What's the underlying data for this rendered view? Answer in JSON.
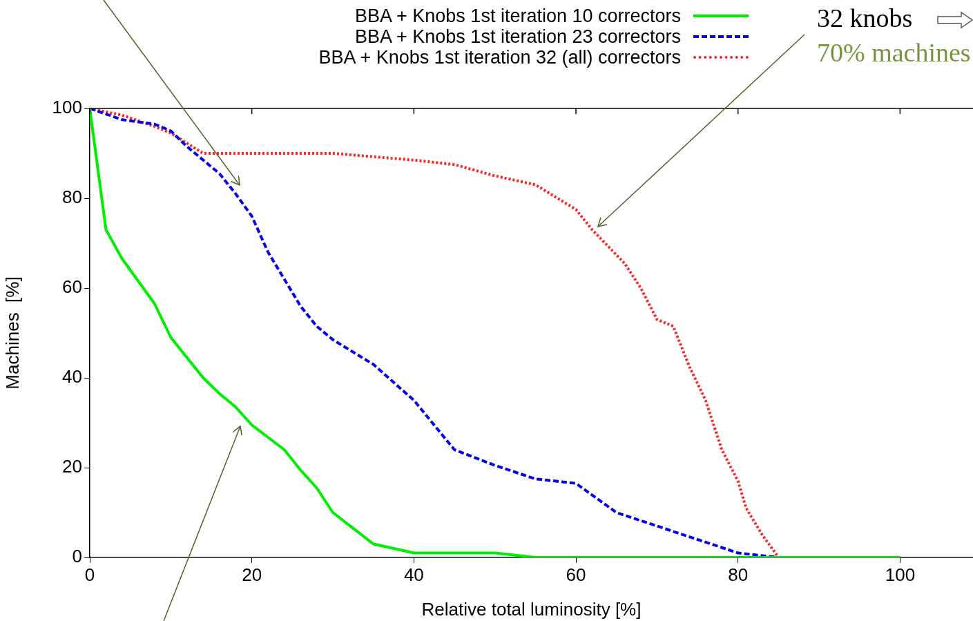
{
  "chart_data": {
    "type": "line",
    "xlabel": "Relative total luminosity [%]",
    "ylabel": "Machines  [%]",
    "xlim": [
      0,
      109
    ],
    "xticks": [
      0,
      20,
      40,
      60,
      80,
      100
    ],
    "ylim": [
      0,
      100
    ],
    "yticks": [
      0,
      20,
      40,
      60,
      80,
      100
    ],
    "grid": false,
    "legend": "top",
    "marker": "none",
    "annotations": [
      "32 knobs",
      "70% machines"
    ],
    "series": [
      {
        "name": "BBA + Knobs 1st iteration 10 correctors",
        "color": "#00ee00",
        "line_style": "solid",
        "x": [
          0,
          2,
          4,
          8,
          10,
          14,
          16,
          18,
          20,
          24,
          26,
          28,
          30,
          35,
          40,
          50,
          55,
          100
        ],
        "values": [
          100,
          73,
          66.5,
          56.5,
          49,
          40,
          36.5,
          33.5,
          29.5,
          24,
          19.5,
          15.5,
          10,
          3,
          1,
          1,
          0,
          0
        ]
      },
      {
        "name": "BBA + Knobs 1st iteration 23 correctors",
        "color": "#0000ee",
        "line_style": "dashed",
        "x": [
          0,
          4,
          8,
          10,
          12,
          16,
          18,
          20,
          22,
          24,
          26,
          28,
          30,
          35,
          40,
          45,
          50,
          55,
          60,
          65,
          70,
          75,
          80,
          85,
          100
        ],
        "values": [
          100,
          97.5,
          96.5,
          95,
          91.5,
          85.5,
          81,
          76,
          68,
          62,
          56,
          51.5,
          48.5,
          43,
          35,
          24,
          20.5,
          17.5,
          16.5,
          10,
          7,
          4,
          1,
          0,
          0
        ]
      },
      {
        "name": "BBA + Knobs 1st iteration 32 (all) correctors",
        "color": "#ff2020",
        "line_style": "dotted",
        "x": [
          0,
          4,
          8,
          10,
          14,
          20,
          30,
          40,
          45,
          50,
          55,
          60,
          62,
          66,
          68,
          70,
          72,
          74,
          76,
          78,
          80,
          81,
          83,
          85,
          100
        ],
        "values": [
          100,
          98.5,
          96,
          94.5,
          90,
          90,
          90,
          88.5,
          87.5,
          85,
          83,
          77.5,
          73,
          65.5,
          60,
          53,
          51.5,
          42.5,
          35,
          24,
          17,
          11,
          5,
          0,
          0
        ]
      }
    ]
  }
}
